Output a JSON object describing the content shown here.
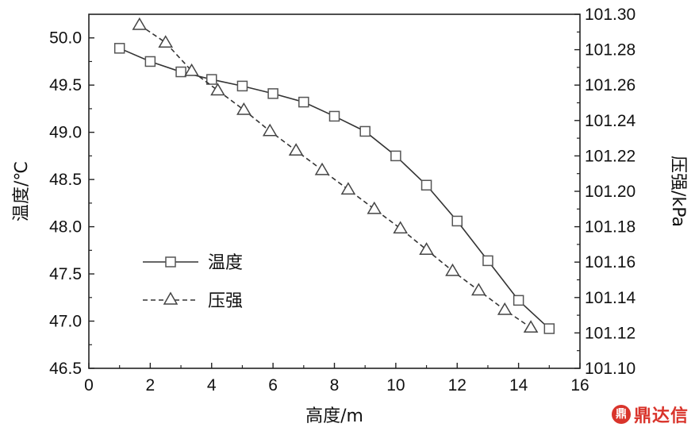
{
  "chart_data": {
    "type": "line",
    "xlabel": "高度/m",
    "ylabel": "温度/℃",
    "y2label": "压强/kPa",
    "xlim": [
      0,
      16
    ],
    "ylim": [
      46.5,
      50.25
    ],
    "y2lim": [
      101.1,
      101.3
    ],
    "xticks": [
      "0",
      "2",
      "4",
      "6",
      "8",
      "10",
      "12",
      "14",
      "16"
    ],
    "yticks": [
      "46.5",
      "47.0",
      "47.5",
      "48.0",
      "48.5",
      "49.0",
      "49.5",
      "50.0"
    ],
    "y2ticks": [
      "101.10",
      "101.12",
      "101.14",
      "101.16",
      "101.18",
      "101.20",
      "101.22",
      "101.24",
      "101.26",
      "101.28",
      "101.30"
    ],
    "grid": false,
    "legend_position": "lower-left",
    "series": [
      {
        "name": "温度",
        "axis": "left",
        "marker": "square",
        "line": "solid",
        "x": [
          1,
          2,
          3,
          4,
          5,
          6,
          7,
          8,
          9,
          10,
          11,
          12,
          13,
          14,
          15
        ],
        "y": [
          49.89,
          49.75,
          49.64,
          49.56,
          49.49,
          49.41,
          49.32,
          49.17,
          49.01,
          48.75,
          48.44,
          48.06,
          47.64,
          47.22,
          46.92
        ]
      },
      {
        "name": "压强",
        "axis": "right",
        "marker": "triangle",
        "line": "dashed",
        "x": [
          1.65,
          2.5,
          3.35,
          4.2,
          5.05,
          5.9,
          6.75,
          7.6,
          8.45,
          9.3,
          10.15,
          11.0,
          11.85,
          12.7,
          13.55,
          14.4
        ],
        "y": [
          101.294,
          101.284,
          101.268,
          101.257,
          101.246,
          101.234,
          101.223,
          101.212,
          101.201,
          101.19,
          101.179,
          101.167,
          101.155,
          101.144,
          101.133,
          101.123
        ]
      }
    ]
  },
  "watermark": {
    "badge": "鼎",
    "text": "鼎达信"
  }
}
